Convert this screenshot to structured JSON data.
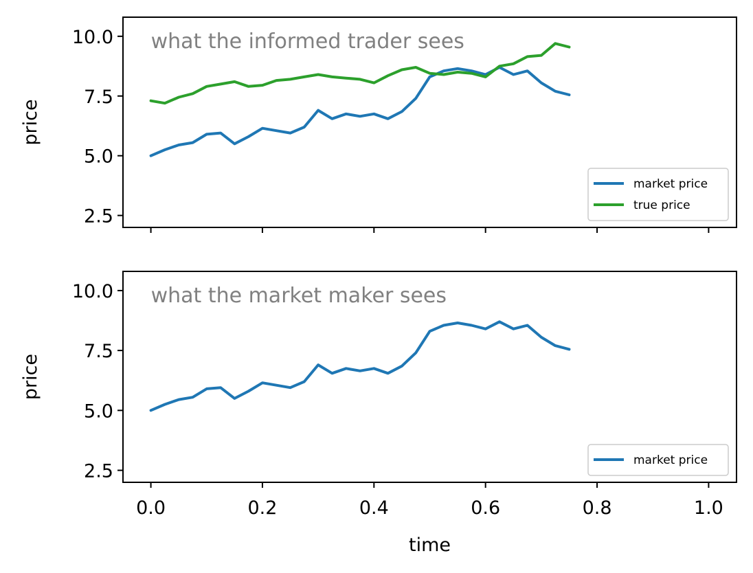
{
  "colors": {
    "market": "#1f77b4",
    "true": "#2ca02c",
    "annotation": "#808080",
    "axis": "#000000"
  },
  "chart_data": [
    {
      "type": "line",
      "title": "",
      "annotation": "what the informed trader sees",
      "xlabel": "",
      "ylabel": "price",
      "xlim": [
        -0.05,
        1.05
      ],
      "ylim": [
        2.0,
        10.8
      ],
      "xticks": [
        0.0,
        0.2,
        0.4,
        0.6,
        0.8,
        1.0
      ],
      "xtick_labels_visible": false,
      "yticks": [
        2.5,
        5.0,
        7.5,
        10.0
      ],
      "ytick_labels": [
        "2.5",
        "5.0",
        "7.5",
        "10.0"
      ],
      "legend_position": "lower-right",
      "grid": false,
      "series": [
        {
          "name": "market price",
          "color": "#1f77b4",
          "x": [
            0.0,
            0.025,
            0.05,
            0.075,
            0.1,
            0.125,
            0.15,
            0.175,
            0.2,
            0.225,
            0.25,
            0.275,
            0.3,
            0.325,
            0.35,
            0.375,
            0.4,
            0.425,
            0.45,
            0.475,
            0.5,
            0.525,
            0.55,
            0.575,
            0.6,
            0.625,
            0.65,
            0.675,
            0.7,
            0.725,
            0.75
          ],
          "y": [
            5.0,
            5.25,
            5.45,
            5.55,
            5.9,
            5.95,
            5.5,
            5.8,
            6.15,
            6.05,
            5.95,
            6.2,
            6.9,
            6.55,
            6.75,
            6.65,
            6.75,
            6.55,
            6.85,
            7.4,
            8.3,
            8.55,
            8.65,
            8.55,
            8.4,
            8.7,
            8.4,
            8.55,
            8.05,
            7.7,
            7.55
          ]
        },
        {
          "name": "true price",
          "color": "#2ca02c",
          "x": [
            0.0,
            0.025,
            0.05,
            0.075,
            0.1,
            0.125,
            0.15,
            0.175,
            0.2,
            0.225,
            0.25,
            0.275,
            0.3,
            0.325,
            0.35,
            0.375,
            0.4,
            0.425,
            0.45,
            0.475,
            0.5,
            0.525,
            0.55,
            0.575,
            0.6,
            0.625,
            0.65,
            0.675,
            0.7,
            0.725,
            0.75
          ],
          "y": [
            7.3,
            7.2,
            7.45,
            7.6,
            7.9,
            8.0,
            8.1,
            7.9,
            7.95,
            8.15,
            8.2,
            8.3,
            8.4,
            8.3,
            8.25,
            8.2,
            8.05,
            8.35,
            8.6,
            8.7,
            8.45,
            8.4,
            8.5,
            8.45,
            8.3,
            8.75,
            8.85,
            9.15,
            9.2,
            9.7,
            9.55
          ]
        }
      ]
    },
    {
      "type": "line",
      "title": "",
      "annotation": "what the market maker sees",
      "xlabel": "time",
      "ylabel": "price",
      "xlim": [
        -0.05,
        1.05
      ],
      "ylim": [
        2.0,
        10.8
      ],
      "xticks": [
        0.0,
        0.2,
        0.4,
        0.6,
        0.8,
        1.0
      ],
      "xtick_labels": [
        "0.0",
        "0.2",
        "0.4",
        "0.6",
        "0.8",
        "1.0"
      ],
      "xtick_labels_visible": true,
      "yticks": [
        2.5,
        5.0,
        7.5,
        10.0
      ],
      "ytick_labels": [
        "2.5",
        "5.0",
        "7.5",
        "10.0"
      ],
      "legend_position": "lower-right",
      "grid": false,
      "series": [
        {
          "name": "market price",
          "color": "#1f77b4",
          "x": [
            0.0,
            0.025,
            0.05,
            0.075,
            0.1,
            0.125,
            0.15,
            0.175,
            0.2,
            0.225,
            0.25,
            0.275,
            0.3,
            0.325,
            0.35,
            0.375,
            0.4,
            0.425,
            0.45,
            0.475,
            0.5,
            0.525,
            0.55,
            0.575,
            0.6,
            0.625,
            0.65,
            0.675,
            0.7,
            0.725,
            0.75
          ],
          "y": [
            5.0,
            5.25,
            5.45,
            5.55,
            5.9,
            5.95,
            5.5,
            5.8,
            6.15,
            6.05,
            5.95,
            6.2,
            6.9,
            6.55,
            6.75,
            6.65,
            6.75,
            6.55,
            6.85,
            7.4,
            8.3,
            8.55,
            8.65,
            8.55,
            8.4,
            8.7,
            8.4,
            8.55,
            8.05,
            7.7,
            7.55
          ]
        }
      ]
    }
  ]
}
